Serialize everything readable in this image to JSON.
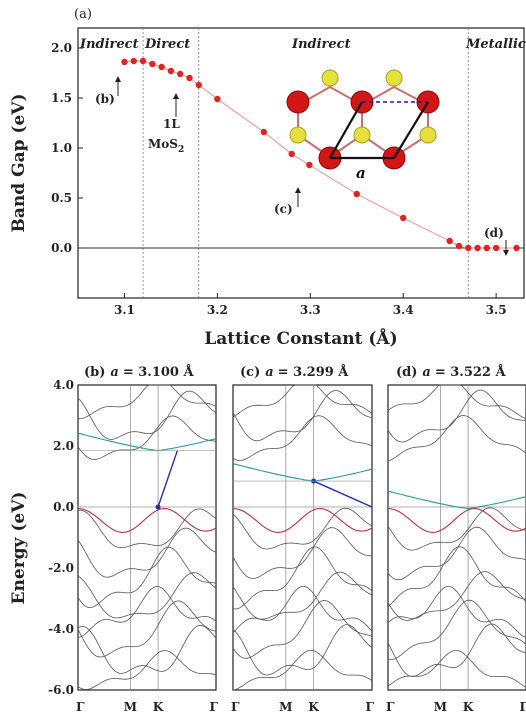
{
  "chart_data": [
    {
      "type": "scatter",
      "panel_label": "(a)",
      "xlabel": "Lattice Constant (Å)",
      "ylabel": "Band Gap (eV)",
      "xlim": [
        3.05,
        3.53
      ],
      "ylim": [
        -0.5,
        2.2
      ],
      "x_ticks": [
        "3.1",
        "3.2",
        "3.3",
        "3.4",
        "3.5"
      ],
      "y_ticks": [
        "0.0",
        "0.5",
        "1.0",
        "1.5",
        "2.0"
      ],
      "regions": [
        "Indirect",
        "Direct",
        "Indirect",
        "Metallic"
      ],
      "region_boundaries": [
        3.12,
        3.18,
        3.47
      ],
      "annotations": [
        {
          "label": "(b)",
          "x": 3.1
        },
        {
          "label": "1L",
          "sub": "MoS",
          "subscript": "2",
          "x": 3.16
        },
        {
          "label": "(c)",
          "x": 3.299
        },
        {
          "label": "(d)",
          "x": 3.522
        }
      ],
      "inset_label": "a",
      "points": [
        {
          "x": 3.1,
          "y": 1.86
        },
        {
          "x": 3.11,
          "y": 1.87
        },
        {
          "x": 3.12,
          "y": 1.87
        },
        {
          "x": 3.13,
          "y": 1.84
        },
        {
          "x": 3.14,
          "y": 1.81
        },
        {
          "x": 3.15,
          "y": 1.77
        },
        {
          "x": 3.16,
          "y": 1.74
        },
        {
          "x": 3.17,
          "y": 1.7
        },
        {
          "x": 3.18,
          "y": 1.63
        },
        {
          "x": 3.2,
          "y": 1.49
        },
        {
          "x": 3.25,
          "y": 1.16
        },
        {
          "x": 3.28,
          "y": 0.94
        },
        {
          "x": 3.299,
          "y": 0.83
        },
        {
          "x": 3.35,
          "y": 0.54
        },
        {
          "x": 3.4,
          "y": 0.3
        },
        {
          "x": 3.45,
          "y": 0.07
        },
        {
          "x": 3.46,
          "y": 0.02
        },
        {
          "x": 3.47,
          "y": 0.0
        },
        {
          "x": 3.48,
          "y": 0.0
        },
        {
          "x": 3.49,
          "y": 0.0
        },
        {
          "x": 3.5,
          "y": 0.0
        },
        {
          "x": 3.522,
          "y": 0.0
        }
      ]
    },
    {
      "type": "line",
      "panel_label": "(b)",
      "lattice_symbol": "a",
      "lattice_value": "= 3.100 Å",
      "ylabel": "Energy (eV)",
      "ylim": [
        -6.0,
        4.0
      ],
      "y_ticks": [
        "4.0",
        "2.0",
        "0.0",
        "-2.0",
        "-4.0",
        "-6.0"
      ],
      "k_labels": [
        "Γ",
        "M",
        "K",
        "Γ"
      ]
    },
    {
      "type": "line",
      "panel_label": "(c)",
      "lattice_symbol": "a",
      "lattice_value": "= 3.299 Å",
      "ylim": [
        -6.0,
        4.0
      ],
      "k_labels": [
        "Γ",
        "M",
        "K",
        "Γ"
      ]
    },
    {
      "type": "line",
      "panel_label": "(d)",
      "lattice_symbol": "a",
      "lattice_value": "= 3.522 Å",
      "ylim": [
        -6.0,
        4.0
      ],
      "k_labels": [
        "Γ",
        "M",
        "K",
        "Γ"
      ]
    }
  ]
}
